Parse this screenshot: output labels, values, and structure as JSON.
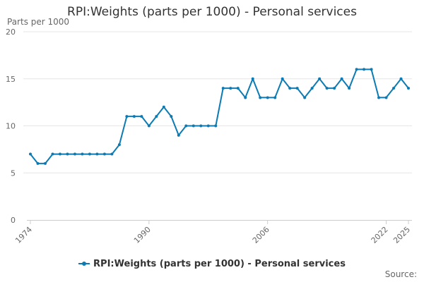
{
  "chart_data": {
    "type": "line",
    "title": "RPI:Weights (parts per 1000) - Personal services",
    "ylabel": "Parts per 1000",
    "xlabel": "",
    "ylim": [
      0,
      20
    ],
    "yticks": [
      0,
      5,
      10,
      15,
      20
    ],
    "xticks": [
      1974,
      1990,
      2006,
      2022,
      2025
    ],
    "grid": true,
    "legend_position": "bottom",
    "source_label": "Source:",
    "colors": {
      "series": "#0c7bb4",
      "grid": "#e6e6e6"
    },
    "x": [
      1974,
      1975,
      1976,
      1977,
      1978,
      1979,
      1980,
      1981,
      1982,
      1983,
      1984,
      1985,
      1986,
      1987,
      1988,
      1989,
      1990,
      1991,
      1992,
      1993,
      1994,
      1995,
      1996,
      1997,
      1998,
      1999,
      2000,
      2001,
      2002,
      2003,
      2004,
      2005,
      2006,
      2007,
      2008,
      2009,
      2010,
      2011,
      2012,
      2013,
      2014,
      2015,
      2016,
      2017,
      2018,
      2019,
      2020,
      2021,
      2022,
      2023,
      2024,
      2025
    ],
    "series": [
      {
        "name": "RPI:Weights (parts per 1000) - Personal services",
        "values": [
          7,
          6,
          6,
          7,
          7,
          7,
          7,
          7,
          7,
          7,
          7,
          7,
          8,
          11,
          11,
          11,
          10,
          11,
          12,
          11,
          9,
          10,
          10,
          10,
          10,
          10,
          14,
          14,
          14,
          13,
          15,
          13,
          13,
          13,
          15,
          14,
          14,
          13,
          14,
          15,
          14,
          14,
          15,
          14,
          16,
          16,
          16,
          13,
          13,
          14,
          15,
          14
        ]
      }
    ]
  }
}
